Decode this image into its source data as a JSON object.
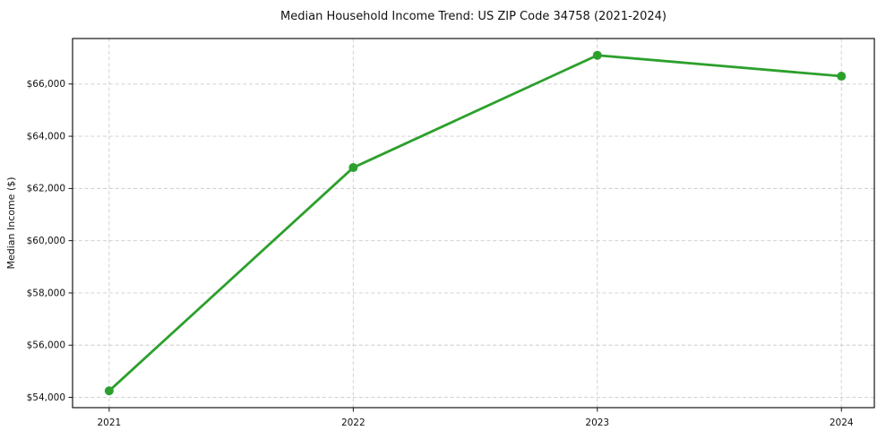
{
  "chart_data": {
    "type": "line",
    "title": "Median Household Income Trend: US ZIP Code 34758 (2021-2024)",
    "xlabel": "",
    "ylabel": "Median Income ($)",
    "categories": [
      "2021",
      "2022",
      "2023",
      "2024"
    ],
    "x": [
      2021,
      2022,
      2023,
      2024
    ],
    "series": [
      {
        "name": "Median Household Income",
        "values": [
          54250,
          62800,
          67100,
          66300
        ]
      }
    ],
    "ytick_values": [
      54000,
      56000,
      58000,
      60000,
      62000,
      64000,
      66000
    ],
    "ytick_labels": [
      "$54,000",
      "$56,000",
      "$58,000",
      "$60,000",
      "$62,000",
      "$64,000",
      "$66,000"
    ],
    "ylim": [
      53607,
      67742
    ],
    "xlim": [
      2020.85,
      2024.135
    ],
    "grid": true,
    "grid_line_style": "dashed",
    "legend": "none",
    "marker": "circle",
    "style": {
      "line_color": "#2ca02c",
      "marker_color": "#2ca02c",
      "grid_color": "#cccccc",
      "axis_color": "#000000",
      "text_color": "#111111",
      "background_color": "#ffffff"
    }
  }
}
